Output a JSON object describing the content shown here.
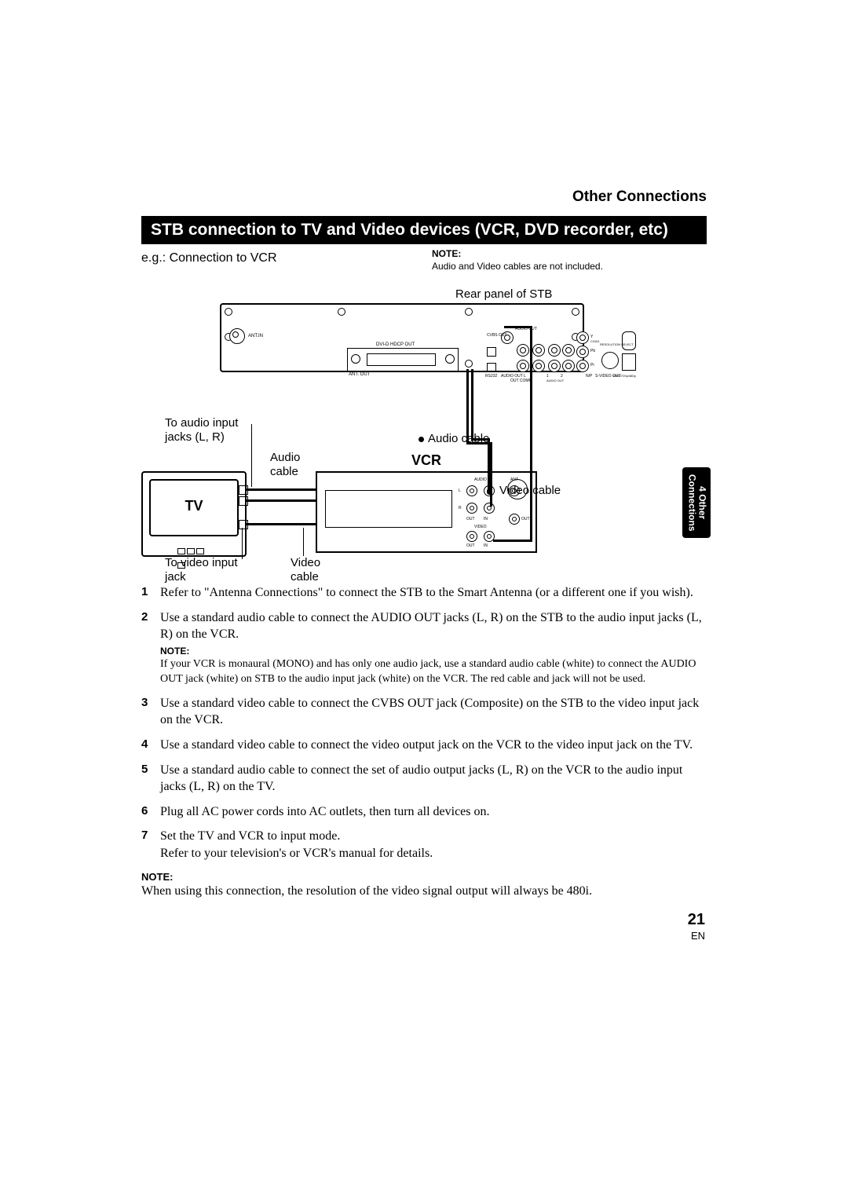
{
  "header": {
    "section": "Other Connections"
  },
  "title_bar": "STB connection to TV and Video devices (VCR, DVD recorder, etc)",
  "subline": "e.g.: Connection to VCR",
  "top_note": {
    "head": "NOTE:",
    "body": "Audio and Video cables are not included."
  },
  "figure": {
    "stb_caption": "Rear panel of STB",
    "tv_label": "TV",
    "vcr_label": "VCR",
    "stb_ports": {
      "dvi": "DVI-D HDCP OUT",
      "ant_in": "ANT.IN",
      "ant_out": "ANT. OUT",
      "audio_out_top": "AUDIO OUT",
      "cvbs": "CVBS OUT",
      "audio_l": "AUDIO OUT L",
      "audio_r": "R",
      "audio_out1": "1",
      "audio_out2": "2",
      "coax": "COAX.",
      "y": "Y",
      "pb": "Pb",
      "pr": "Pr",
      "comp": "OUT COMP.",
      "res": "RESOLUTION SELECT",
      "svideo": "S-VIDEO OUT",
      "resvals": "1080i/720p/480p",
      "np": "N/P",
      "rs232": "RS232"
    },
    "vcr_ports": {
      "ant": "ANT",
      "audio": "AUDIO",
      "video": "VIDEO",
      "out": "OUT",
      "in": "IN",
      "l": "L",
      "r": "R"
    },
    "callouts": {
      "audio_in": "To audio input\njacks (L, R)",
      "audio_cable1": "Audio\ncable",
      "audio_cable2": "Audio cable",
      "video_in": "To video input\njack",
      "video_cable1": "Video\ncable",
      "video_cable2": "Video cable"
    }
  },
  "steps": [
    {
      "n": "1",
      "t": "Refer to \"Antenna Connections\" to connect the STB to the Smart Antenna (or a different one if you wish)."
    },
    {
      "n": "2",
      "t": "Use a standard audio cable to connect the AUDIO OUT jacks (L, R) on the STB to the audio input jacks (L, R) on the VCR.",
      "note": "If your VCR is monaural (MONO) and has only one audio jack, use a standard audio cable (white) to connect the AUDIO OUT jack (white) on STB to the audio input jack (white) on the VCR. The red cable and jack will not be used."
    },
    {
      "n": "3",
      "t": "Use a standard video cable to connect the CVBS OUT jack (Composite) on the STB to the video input jack on the VCR."
    },
    {
      "n": "4",
      "t": "Use a standard video cable to connect the video output jack on the VCR to the video input jack on the TV."
    },
    {
      "n": "5",
      "t": "Use a standard audio cable to connect the set of audio output jacks (L, R) on the VCR to the audio input jacks (L, R) on the TV."
    },
    {
      "n": "6",
      "t": "Plug all AC power cords into AC outlets, then turn all devices on."
    },
    {
      "n": "7",
      "t": "Set the TV and VCR to input mode.\nRefer to your television's or VCR's manual for details."
    }
  ],
  "bottom_note": {
    "head": "NOTE:",
    "body": "When using this connection, the resolution of the video signal output will always be 480i."
  },
  "side_tab": "4 Other\nConnections",
  "page": {
    "num": "21",
    "lang": "EN"
  },
  "colors": {
    "bg": "#ffffff",
    "fg": "#000000"
  }
}
